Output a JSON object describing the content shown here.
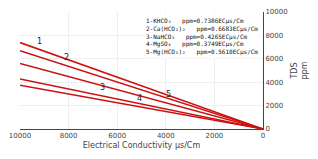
{
  "chart_data": {
    "type": "line",
    "xlabel": "Electrical Conductivity μs/Cm",
    "ylabel": "TDS\nppm",
    "x": [
      10000,
      0
    ],
    "xlim": [
      10000,
      0
    ],
    "ylim": [
      0,
      10000
    ],
    "xticks": [
      10000,
      8000,
      6000,
      4000,
      2000,
      0
    ],
    "yticks": [
      0,
      2000,
      4000,
      6000,
      8000,
      10000
    ],
    "grid": true,
    "legend": "upper right",
    "series": [
      {
        "name": "1-KHCO₃   ppm=0.7386ECμs/Cm",
        "color": "#cc1111",
        "values": [
          7386,
          0
        ]
      },
      {
        "name": "2-Ca(HCO₃)₂   ppm=0.6683ECμs/Cm",
        "color": "#cc1111",
        "values": [
          6683,
          0
        ]
      },
      {
        "name": "3-NaHCO₃   ppm=0.4265ECμs/Cm",
        "color": "#cc1111",
        "values": [
          4265,
          0
        ]
      },
      {
        "name": "4-MgSO₄   ppm=0.3749ECμs/Cm",
        "color": "#cc1111",
        "values": [
          3749,
          0
        ]
      },
      {
        "name": "5-Mg(HCO₃)₂   ppm=0.5610ECμs/Cm",
        "color": "#cc1111",
        "values": [
          5610,
          0
        ]
      }
    ],
    "annotations": [
      {
        "text": "1",
        "x": 9200,
        "y": 6795.12
      },
      {
        "text": "2",
        "x": 8100,
        "y": 5413.23
      },
      {
        "text": "3",
        "x": 6600,
        "y": 2814.9
      },
      {
        "text": "4",
        "x": 5100,
        "y": 1911.99
      },
      {
        "text": "5",
        "x": 3900,
        "y": 2187.9
      }
    ]
  }
}
